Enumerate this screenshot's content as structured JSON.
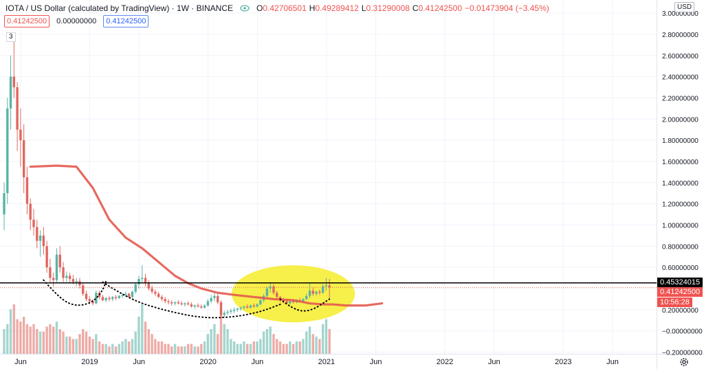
{
  "legend": {
    "title": "IOTA / US Dollar (calculated by TradingView) · 1W · BINANCE",
    "open_label": "O",
    "open": "0.42706501",
    "high_label": "H",
    "high": "0.49289412",
    "low_label": "L",
    "low": "0.31290008",
    "close_label": "C",
    "close": "0.41242500",
    "change": "−0.01473904 (−3.45%)"
  },
  "indicator_inputs": [
    "0.41242500",
    "0.00000000",
    "0.41242500"
  ],
  "volume_badge": "3",
  "currency": "USD",
  "price_tags": {
    "horizontal_line": "0.45324015",
    "last_price": "0.41242500",
    "countdown": "10:56:28"
  },
  "icons": {
    "eye": "eye-icon",
    "settings": "gear-icon"
  },
  "colors": {
    "up": "#5ab3a5",
    "down": "#e0675f",
    "ma": "#e35a4f",
    "highlight": "#f6ec2a",
    "hline": "#000000"
  },
  "chart_data": {
    "type": "candlestick",
    "title": "IOTA / US Dollar (calculated by TradingView) · 1W · BINANCE",
    "interval": "1W",
    "y_axis": {
      "ticks": [
        "3.00000000",
        "2.80000000",
        "2.60000000",
        "2.40000000",
        "2.20000000",
        "2.00000000",
        "1.80000000",
        "1.60000000",
        "1.40000000",
        "1.20000000",
        "1.00000000",
        "0.80000000",
        "0.60000000",
        "0.40000000",
        "0.20000000",
        "−0.00000000",
        "−0.20000000"
      ],
      "range": [
        -0.21,
        3.02
      ]
    },
    "x_axis": {
      "ticks": [
        "Jun",
        "2019",
        "Jun",
        "2020",
        "Jun",
        "2021",
        "Jun",
        "2022",
        "Jun",
        "2023",
        "Jun"
      ],
      "tick_dates": [
        "2018-06",
        "2019-01",
        "2019-06",
        "2020-01",
        "2020-06",
        "2021-01",
        "2021-06",
        "2022-01",
        "2022-06",
        "2023-01",
        "2023-06"
      ]
    },
    "ohlc": [
      [
        1.1,
        1.4,
        0.95,
        1.3
      ],
      [
        1.3,
        2.2,
        1.2,
        2.1
      ],
      [
        2.1,
        2.6,
        1.9,
        2.4
      ],
      [
        2.4,
        2.78,
        2.2,
        2.3
      ],
      [
        2.3,
        2.35,
        1.7,
        1.9
      ],
      [
        1.9,
        2.1,
        1.55,
        1.8
      ],
      [
        1.8,
        1.95,
        1.3,
        1.45
      ],
      [
        1.45,
        1.55,
        1.1,
        1.2
      ],
      [
        1.2,
        1.25,
        0.95,
        1.05
      ],
      [
        1.05,
        1.15,
        0.9,
        0.98
      ],
      [
        0.98,
        1.05,
        0.78,
        0.85
      ],
      [
        0.85,
        0.95,
        0.7,
        0.9
      ],
      [
        0.9,
        0.98,
        0.72,
        0.8
      ],
      [
        0.8,
        0.85,
        0.55,
        0.6
      ],
      [
        0.6,
        0.68,
        0.45,
        0.5
      ],
      [
        0.5,
        0.55,
        0.42,
        0.48
      ],
      [
        0.48,
        0.78,
        0.45,
        0.72
      ],
      [
        0.72,
        0.8,
        0.55,
        0.6
      ],
      [
        0.6,
        0.65,
        0.46,
        0.5
      ],
      [
        0.5,
        0.56,
        0.46,
        0.52
      ],
      [
        0.52,
        0.55,
        0.45,
        0.49
      ],
      [
        0.49,
        0.53,
        0.44,
        0.46
      ],
      [
        0.46,
        0.5,
        0.42,
        0.47
      ],
      [
        0.47,
        0.5,
        0.4,
        0.43
      ],
      [
        0.43,
        0.45,
        0.33,
        0.35
      ],
      [
        0.35,
        0.38,
        0.28,
        0.3
      ],
      [
        0.3,
        0.33,
        0.25,
        0.28
      ],
      [
        0.28,
        0.3,
        0.24,
        0.26
      ],
      [
        0.26,
        0.38,
        0.25,
        0.36
      ],
      [
        0.36,
        0.38,
        0.3,
        0.32
      ],
      [
        0.32,
        0.34,
        0.28,
        0.29
      ],
      [
        0.29,
        0.32,
        0.27,
        0.31
      ],
      [
        0.31,
        0.33,
        0.28,
        0.3
      ],
      [
        0.3,
        0.33,
        0.28,
        0.32
      ],
      [
        0.32,
        0.34,
        0.29,
        0.31
      ],
      [
        0.31,
        0.34,
        0.3,
        0.33
      ],
      [
        0.33,
        0.36,
        0.31,
        0.34
      ],
      [
        0.34,
        0.37,
        0.32,
        0.35
      ],
      [
        0.35,
        0.36,
        0.31,
        0.32
      ],
      [
        0.32,
        0.38,
        0.31,
        0.37
      ],
      [
        0.37,
        0.45,
        0.35,
        0.44
      ],
      [
        0.44,
        0.52,
        0.4,
        0.49
      ],
      [
        0.49,
        0.62,
        0.45,
        0.5
      ],
      [
        0.5,
        0.54,
        0.42,
        0.45
      ],
      [
        0.45,
        0.48,
        0.38,
        0.4
      ],
      [
        0.4,
        0.43,
        0.35,
        0.37
      ],
      [
        0.37,
        0.39,
        0.33,
        0.35
      ],
      [
        0.35,
        0.37,
        0.31,
        0.32
      ],
      [
        0.32,
        0.34,
        0.28,
        0.3
      ],
      [
        0.3,
        0.32,
        0.26,
        0.28
      ],
      [
        0.28,
        0.3,
        0.25,
        0.27
      ],
      [
        0.27,
        0.29,
        0.24,
        0.26
      ],
      [
        0.26,
        0.28,
        0.24,
        0.27
      ],
      [
        0.27,
        0.29,
        0.25,
        0.26
      ],
      [
        0.26,
        0.28,
        0.24,
        0.25
      ],
      [
        0.25,
        0.27,
        0.23,
        0.26
      ],
      [
        0.26,
        0.28,
        0.24,
        0.25
      ],
      [
        0.25,
        0.27,
        0.22,
        0.23
      ],
      [
        0.23,
        0.25,
        0.21,
        0.24
      ],
      [
        0.24,
        0.26,
        0.22,
        0.23
      ],
      [
        0.23,
        0.25,
        0.21,
        0.22
      ],
      [
        0.22,
        0.25,
        0.21,
        0.24
      ],
      [
        0.24,
        0.3,
        0.23,
        0.28
      ],
      [
        0.28,
        0.34,
        0.26,
        0.31
      ],
      [
        0.31,
        0.36,
        0.28,
        0.33
      ],
      [
        0.33,
        0.35,
        0.25,
        0.27
      ],
      [
        0.27,
        0.29,
        0.12,
        0.15
      ],
      [
        0.15,
        0.19,
        0.13,
        0.17
      ],
      [
        0.17,
        0.2,
        0.15,
        0.18
      ],
      [
        0.18,
        0.21,
        0.16,
        0.19
      ],
      [
        0.19,
        0.22,
        0.17,
        0.2
      ],
      [
        0.2,
        0.22,
        0.18,
        0.21
      ],
      [
        0.21,
        0.23,
        0.19,
        0.22
      ],
      [
        0.22,
        0.24,
        0.2,
        0.23
      ],
      [
        0.23,
        0.25,
        0.21,
        0.22
      ],
      [
        0.22,
        0.25,
        0.21,
        0.24
      ],
      [
        0.24,
        0.26,
        0.22,
        0.23
      ],
      [
        0.23,
        0.26,
        0.22,
        0.25
      ],
      [
        0.25,
        0.3,
        0.24,
        0.29
      ],
      [
        0.29,
        0.35,
        0.27,
        0.33
      ],
      [
        0.33,
        0.42,
        0.31,
        0.4
      ],
      [
        0.4,
        0.46,
        0.36,
        0.42
      ],
      [
        0.42,
        0.44,
        0.34,
        0.36
      ],
      [
        0.36,
        0.38,
        0.3,
        0.32
      ],
      [
        0.32,
        0.33,
        0.27,
        0.29
      ],
      [
        0.29,
        0.31,
        0.26,
        0.28
      ],
      [
        0.28,
        0.3,
        0.25,
        0.26
      ],
      [
        0.26,
        0.29,
        0.25,
        0.28
      ],
      [
        0.28,
        0.3,
        0.26,
        0.27
      ],
      [
        0.27,
        0.3,
        0.26,
        0.29
      ],
      [
        0.29,
        0.31,
        0.27,
        0.28
      ],
      [
        0.28,
        0.31,
        0.27,
        0.3
      ],
      [
        0.3,
        0.35,
        0.29,
        0.33
      ],
      [
        0.33,
        0.45,
        0.31,
        0.38
      ],
      [
        0.38,
        0.41,
        0.33,
        0.35
      ],
      [
        0.35,
        0.38,
        0.33,
        0.37
      ],
      [
        0.37,
        0.39,
        0.34,
        0.36
      ],
      [
        0.36,
        0.44,
        0.35,
        0.42
      ],
      [
        0.42,
        0.5,
        0.38,
        0.43
      ],
      [
        0.43,
        0.49,
        0.31,
        0.41
      ]
    ],
    "volume": [
      0.1,
      0.12,
      0.18,
      0.2,
      0.14,
      0.13,
      0.15,
      0.12,
      0.11,
      0.12,
      0.1,
      0.09,
      0.09,
      0.11,
      0.12,
      0.11,
      0.13,
      0.1,
      0.09,
      0.07,
      0.07,
      0.06,
      0.06,
      0.08,
      0.1,
      0.09,
      0.07,
      0.06,
      0.08,
      0.05,
      0.04,
      0.04,
      0.03,
      0.04,
      0.03,
      0.04,
      0.05,
      0.06,
      0.05,
      0.06,
      0.09,
      0.15,
      0.2,
      0.13,
      0.1,
      0.08,
      0.06,
      0.05,
      0.05,
      0.04,
      0.04,
      0.03,
      0.04,
      0.03,
      0.03,
      0.03,
      0.04,
      0.04,
      0.03,
      0.03,
      0.04,
      0.05,
      0.08,
      0.1,
      0.12,
      0.08,
      0.18,
      0.12,
      0.1,
      0.06,
      0.05,
      0.04,
      0.04,
      0.05,
      0.04,
      0.04,
      0.05,
      0.05,
      0.06,
      0.09,
      0.1,
      0.11,
      0.08,
      0.06,
      0.05,
      0.04,
      0.04,
      0.05,
      0.04,
      0.05,
      0.05,
      0.06,
      0.09,
      0.11,
      0.08,
      0.07,
      0.06,
      0.12,
      0.14,
      0.1
    ],
    "moving_average": [
      [
        8,
        1.55
      ],
      [
        16,
        1.56
      ],
      [
        22,
        1.55
      ],
      [
        27,
        1.35
      ],
      [
        32,
        1.05
      ],
      [
        37,
        0.88
      ],
      [
        42,
        0.78
      ],
      [
        47,
        0.65
      ],
      [
        52,
        0.52
      ],
      [
        56,
        0.45
      ],
      [
        60,
        0.4
      ],
      [
        65,
        0.36
      ],
      [
        70,
        0.34
      ],
      [
        76,
        0.32
      ],
      [
        82,
        0.3
      ],
      [
        88,
        0.29
      ],
      [
        93,
        0.26
      ],
      [
        97,
        0.25
      ],
      [
        100,
        0.25
      ],
      [
        104,
        0.24
      ],
      [
        110,
        0.24
      ],
      [
        115,
        0.26
      ]
    ],
    "horizontal_line": 0.45324015,
    "annotations": [
      {
        "type": "dotted-arc",
        "points": [
          [
            12,
            0.48
          ],
          [
            17,
            0.3
          ],
          [
            22,
            0.23
          ],
          [
            27,
            0.27
          ],
          [
            30,
            0.38
          ],
          [
            31,
            0.47
          ]
        ]
      },
      {
        "type": "dotted-arc",
        "points": [
          [
            30,
            0.46
          ],
          [
            38,
            0.3
          ],
          [
            48,
            0.2
          ],
          [
            60,
            0.12
          ],
          [
            70,
            0.13
          ],
          [
            78,
            0.18
          ],
          [
            84,
            0.25
          ]
        ]
      },
      {
        "type": "dotted-arc",
        "points": [
          [
            84,
            0.3
          ],
          [
            88,
            0.2
          ],
          [
            93,
            0.18
          ],
          [
            99,
            0.3
          ]
        ]
      },
      {
        "type": "highlight-ellipse",
        "center": [
          88,
          0.35
        ],
        "rx": 15,
        "ry": 0.25
      }
    ]
  }
}
